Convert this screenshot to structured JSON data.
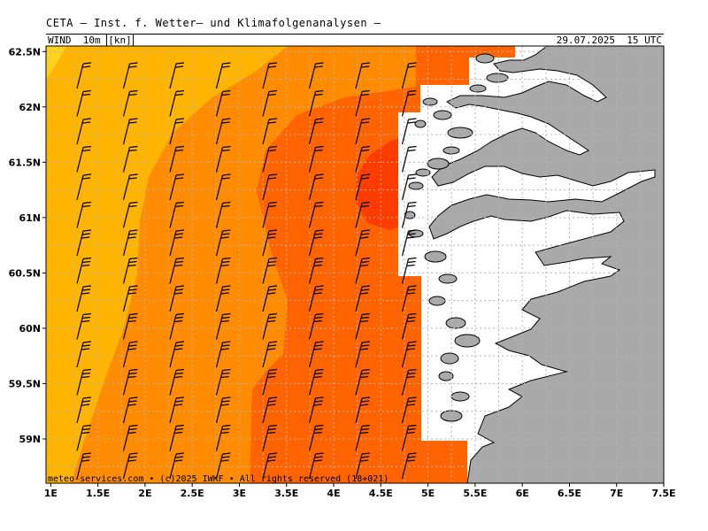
{
  "header": {
    "title": "CETA — Inst. f. Wetter– und Klimafolgenanalysen —",
    "field_prefix": "WIND  10m ",
    "field_unit": "[kn]",
    "datetime": "29.07.2025  15 UTC"
  },
  "footer": {
    "copyright": "meteo-services.com • (c)2025 IWKF • All rights reserved (18+021)"
  },
  "axes": {
    "lon_labels": [
      "1E",
      "1.5E",
      "2E",
      "2.5E",
      "3E",
      "3.5E",
      "4E",
      "4.5E",
      "5E",
      "5.5E",
      "6E",
      "6.5E",
      "7E",
      "7.5E"
    ],
    "lon_values": [
      1,
      1.5,
      2,
      2.5,
      3,
      3.5,
      4,
      4.5,
      5,
      5.5,
      6,
      6.5,
      7,
      7.5
    ],
    "lat_labels": [
      "62.5N",
      "62N",
      "61.5N",
      "61N",
      "60.5N",
      "60N",
      "59.5N",
      "59N"
    ],
    "lat_values": [
      62.5,
      62,
      61.5,
      61,
      60.5,
      60,
      59.5,
      59
    ],
    "lon_range": [
      0.95,
      7.5
    ],
    "lat_range": [
      58.6,
      62.55
    ]
  },
  "colors": {
    "wind_10_15": "#ffd21e",
    "wind_15_20": "#ffb400",
    "wind_20_25": "#ff8c00",
    "wind_25_30": "#ff6400",
    "wind_30_35": "#ff3c00",
    "land": "#a9a9a9",
    "grid": "#b4b4b4"
  }
}
